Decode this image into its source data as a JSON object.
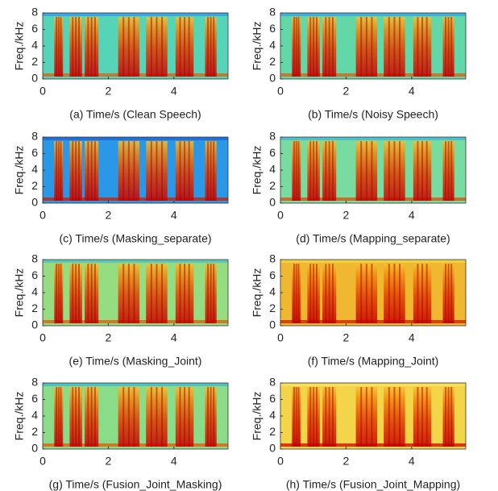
{
  "chart_data": [
    {
      "type": "spectrogram",
      "xlabel": "(a) Time/s (Clean Speech)",
      "ylabel": "Freq./kHz",
      "xlim": [
        0,
        5.65
      ],
      "ylim": [
        0,
        8
      ],
      "xticks": [
        0,
        2,
        4
      ],
      "yticks": [
        0,
        2,
        4,
        6,
        8
      ]
    },
    {
      "type": "spectrogram",
      "xlabel": "(b) Time/s (Noisy Speech)",
      "ylabel": "Freq./kHz",
      "xlim": [
        0,
        5.65
      ],
      "ylim": [
        0,
        8
      ],
      "xticks": [
        0,
        2,
        4
      ],
      "yticks": [
        0,
        2,
        4,
        6,
        8
      ]
    },
    {
      "type": "spectrogram",
      "xlabel": "(c) Time/s (Masking_separate)",
      "ylabel": "Freq./kHz",
      "xlim": [
        0,
        5.65
      ],
      "ylim": [
        0,
        8
      ],
      "xticks": [
        0,
        2,
        4
      ],
      "yticks": [
        0,
        2,
        4,
        6,
        8
      ]
    },
    {
      "type": "spectrogram",
      "xlabel": "(d) Time/s (Mapping_separate)",
      "ylabel": "Freq./kHz",
      "xlim": [
        0,
        5.65
      ],
      "ylim": [
        0,
        8
      ],
      "xticks": [
        0,
        2,
        4
      ],
      "yticks": [
        0,
        2,
        4,
        6,
        8
      ]
    },
    {
      "type": "spectrogram",
      "xlabel": "(e) Time/s (Masking_Joint)",
      "ylabel": "Freq./kHz",
      "xlim": [
        0,
        5.65
      ],
      "ylim": [
        0,
        8
      ],
      "xticks": [
        0,
        2,
        4
      ],
      "yticks": [
        0,
        2,
        4,
        6,
        8
      ]
    },
    {
      "type": "spectrogram",
      "xlabel": "(f) Time/s (Mapping_Joint)",
      "ylabel": "Freq./kHz",
      "xlim": [
        0,
        5.65
      ],
      "ylim": [
        0,
        8
      ],
      "xticks": [
        0,
        2,
        4
      ],
      "yticks": [
        0,
        2,
        4,
        6,
        8
      ]
    },
    {
      "type": "spectrogram",
      "xlabel": "(g) Time/s (Fusion_Joint_Masking)",
      "ylabel": "Freq./kHz",
      "xlim": [
        0,
        5.65
      ],
      "ylim": [
        0,
        8
      ],
      "xticks": [
        0,
        2,
        4
      ],
      "yticks": [
        0,
        2,
        4,
        6,
        8
      ]
    },
    {
      "type": "spectrogram",
      "xlabel": "(h) Time/s (Fusion_Joint_Mapping)",
      "ylabel": "Freq./kHz",
      "xlim": [
        0,
        5.65
      ],
      "ylim": [
        0,
        8
      ],
      "xticks": [
        0,
        2,
        4
      ],
      "yticks": [
        0,
        2,
        4,
        6,
        8
      ]
    }
  ]
}
